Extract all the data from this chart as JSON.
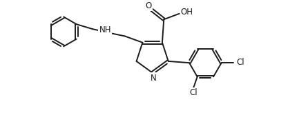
{
  "background_color": "#ffffff",
  "line_color": "#1a1a1a",
  "line_width": 1.4,
  "font_size": 8.5,
  "figsize": [
    4.46,
    1.8
  ],
  "dpi": 100,
  "xlim": [
    0.0,
    8.5
  ],
  "ylim": [
    0.2,
    4.0
  ]
}
